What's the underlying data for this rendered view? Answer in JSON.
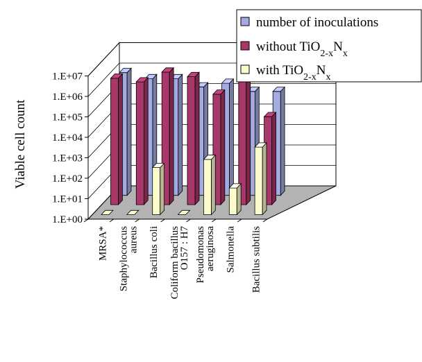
{
  "chart_data": {
    "type": "bar",
    "variant": "3d-column",
    "scale": "log",
    "ylabel": "Viable cell count",
    "yticks": [
      "1.E+00",
      "1.E+01",
      "1.E+02",
      "1.E+03",
      "1.E+04",
      "1.E+05",
      "1.E+06",
      "1.E+07"
    ],
    "ylim": [
      1,
      10000000
    ],
    "categories": [
      [
        "MRSA*"
      ],
      [
        "Staphylococcus",
        "aureus"
      ],
      [
        "Bacillus coli"
      ],
      [
        "Coliform bacillus",
        "O157 : H7"
      ],
      [
        "Pseudomonas",
        "aeruginosa"
      ],
      [
        "Salmonella"
      ],
      [
        "Bacillus subtilis"
      ]
    ],
    "series": [
      {
        "name": "number of inoculations",
        "color": "#a4abe0",
        "values": [
          1000000,
          500000,
          500000,
          200000,
          300000,
          120000,
          120000
        ]
      },
      {
        "name": "without TiO2-xNx",
        "color": "#a8386a",
        "values": [
          1500000,
          1000000,
          3000000,
          1800000,
          250000,
          1000000,
          20000
        ]
      },
      {
        "name": "with TiO2-xNx",
        "color": "#fbfbcc",
        "values": [
          1,
          1,
          200,
          1,
          500,
          20,
          2000
        ]
      }
    ],
    "legend_position": "top-right",
    "grid": true
  }
}
